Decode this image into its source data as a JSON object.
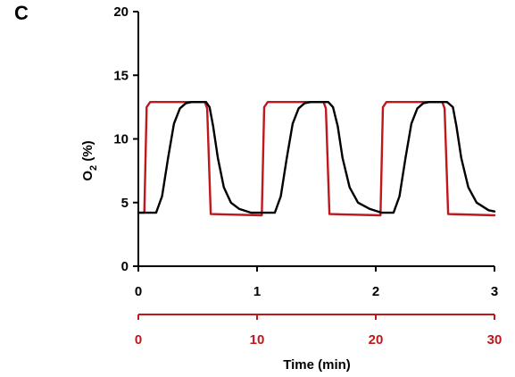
{
  "panel_label": "C",
  "chart_data": {
    "type": "line",
    "ylabel_main": "O",
    "ylabel_sub": "2",
    "ylabel_unit": " (%)",
    "xlabel": "Time (min)",
    "ylim": [
      0,
      20
    ],
    "yticks": [
      "0",
      "5",
      "10",
      "15",
      "20"
    ],
    "x_axis_top": {
      "range": [
        0,
        3
      ],
      "ticks": [
        "0",
        "1",
        "2",
        "3"
      ],
      "color": "#000000"
    },
    "x_axis_bottom": {
      "range": [
        0,
        30
      ],
      "ticks": [
        "0",
        "10",
        "20",
        "30"
      ],
      "color": "#c0161c"
    },
    "grid": false,
    "series": [
      {
        "color": "#c0161c",
        "axis": "bottom",
        "x": [
          0,
          0.5,
          0.7,
          1.0,
          5.6,
          5.8,
          6.1,
          10.4,
          10.6,
          10.9,
          15.6,
          15.8,
          16.1,
          20.4,
          20.6,
          20.9,
          25.6,
          25.8,
          26.1,
          30
        ],
        "y": [
          4.2,
          4.2,
          12.5,
          12.9,
          12.9,
          12.4,
          4.1,
          4.0,
          12.5,
          12.9,
          12.9,
          12.4,
          4.1,
          4.0,
          12.5,
          12.9,
          12.9,
          12.4,
          4.1,
          4.0
        ]
      },
      {
        "color": "#000000",
        "axis": "top",
        "x": [
          0,
          0.15,
          0.2,
          0.25,
          0.3,
          0.35,
          0.4,
          0.45,
          0.5,
          0.57,
          0.6,
          0.63,
          0.67,
          0.72,
          0.78,
          0.85,
          0.95,
          1.05,
          1.15,
          1.2,
          1.25,
          1.3,
          1.35,
          1.4,
          1.45,
          1.5,
          1.6,
          1.64,
          1.68,
          1.72,
          1.78,
          1.85,
          1.95,
          2.05,
          2.15,
          2.2,
          2.25,
          2.3,
          2.35,
          2.4,
          2.45,
          2.5,
          2.6,
          2.65,
          2.68,
          2.72,
          2.78,
          2.85,
          2.95,
          3.0
        ],
        "y": [
          4.2,
          4.2,
          5.5,
          8.5,
          11.2,
          12.4,
          12.8,
          12.9,
          12.9,
          12.9,
          12.5,
          11.0,
          8.5,
          6.2,
          5.0,
          4.5,
          4.2,
          4.2,
          4.2,
          5.5,
          8.5,
          11.2,
          12.4,
          12.8,
          12.9,
          12.9,
          12.9,
          12.5,
          11.0,
          8.5,
          6.2,
          5.0,
          4.5,
          4.2,
          4.2,
          5.5,
          8.5,
          11.2,
          12.4,
          12.8,
          12.9,
          12.9,
          12.9,
          12.5,
          11.0,
          8.5,
          6.2,
          5.0,
          4.4,
          4.3
        ]
      }
    ]
  }
}
